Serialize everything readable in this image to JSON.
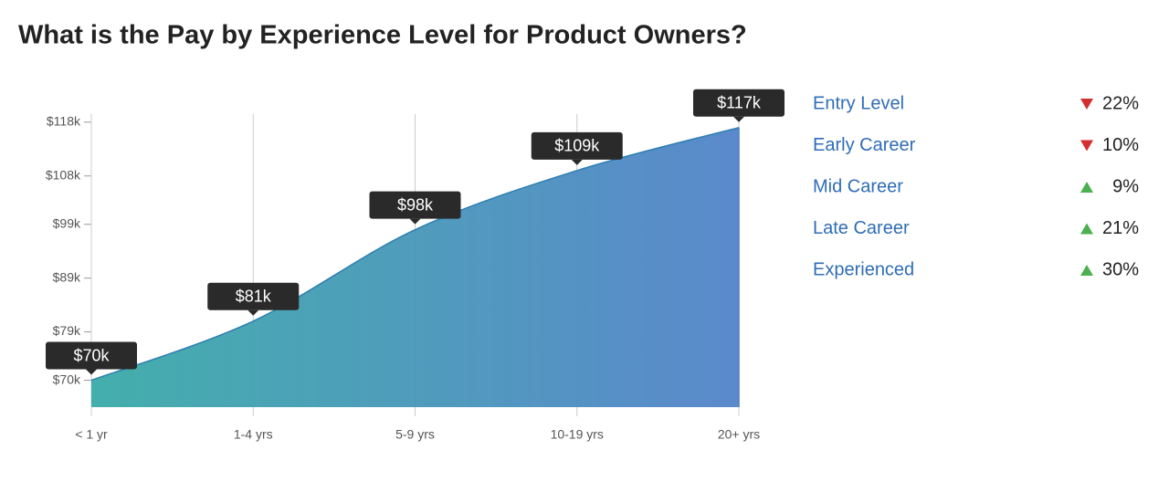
{
  "chart_data": {
    "type": "area",
    "title": "What is the Pay by Experience Level for Product Owners?",
    "categories": [
      "< 1 yr",
      "1-4 yrs",
      "5-9 yrs",
      "10-19 yrs",
      "20+ yrs"
    ],
    "values": [
      70,
      81,
      98,
      109,
      117
    ],
    "value_labels": [
      "$70k",
      "$81k",
      "$98k",
      "$109k",
      "$117k"
    ],
    "colors": [
      "#3aaaa8",
      "#5283c9"
    ],
    "ylim": [
      65,
      119.5
    ],
    "yticks": [
      {
        "value": 70,
        "label": "$70k"
      },
      {
        "value": 79,
        "label": "$79k"
      },
      {
        "value": 89,
        "label": "$89k"
      },
      {
        "value": 99,
        "label": "$99k"
      },
      {
        "value": 108,
        "label": "$108k"
      },
      {
        "value": 118,
        "label": "$118k"
      }
    ],
    "grid": true
  },
  "comparison": [
    {
      "label": "Entry Level",
      "direction": "down",
      "change": "22%"
    },
    {
      "label": "Early Career",
      "direction": "down",
      "change": "10%"
    },
    {
      "label": "Mid Career",
      "direction": "up",
      "change": "9%"
    },
    {
      "label": "Late Career",
      "direction": "up",
      "change": "21%"
    },
    {
      "label": "Experienced",
      "direction": "up",
      "change": "30%"
    }
  ]
}
